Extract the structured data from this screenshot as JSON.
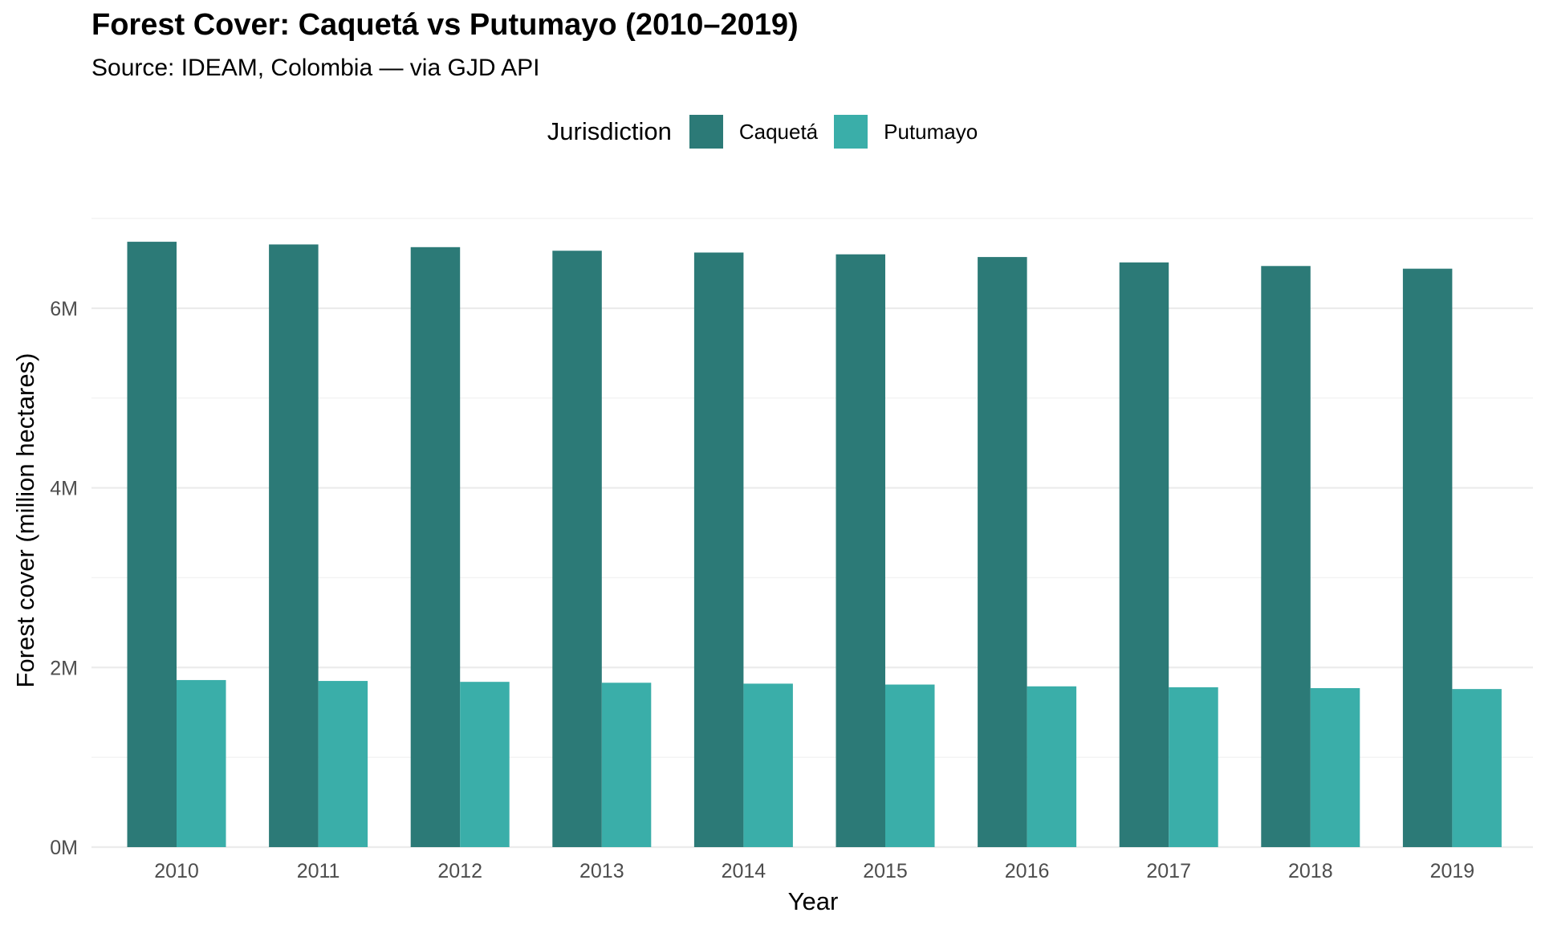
{
  "chart_data": {
    "type": "bar",
    "title": "Forest Cover: Caquetá vs Putumayo (2010–2019)",
    "subtitle": "Source: IDEAM, Colombia — via GJD API",
    "xlabel": "Year",
    "ylabel": "Forest cover (million hectares)",
    "categories": [
      "2010",
      "2011",
      "2012",
      "2013",
      "2014",
      "2015",
      "2016",
      "2017",
      "2018",
      "2019"
    ],
    "series": [
      {
        "name": "Caquetá",
        "color": "#2c7a77",
        "values": [
          6.74,
          6.71,
          6.68,
          6.64,
          6.62,
          6.6,
          6.57,
          6.51,
          6.47,
          6.44
        ]
      },
      {
        "name": "Putumayo",
        "color": "#3aaea9",
        "values": [
          1.86,
          1.85,
          1.84,
          1.83,
          1.82,
          1.81,
          1.79,
          1.78,
          1.77,
          1.76
        ]
      }
    ],
    "ylim": [
      0,
      7
    ],
    "yticks": [
      {
        "value": 0,
        "label": "0M"
      },
      {
        "value": 2,
        "label": "2M"
      },
      {
        "value": 4,
        "label": "4M"
      },
      {
        "value": 6,
        "label": "6M"
      }
    ],
    "grid": true,
    "legend": {
      "title": "Jurisdiction",
      "position": "top"
    }
  }
}
